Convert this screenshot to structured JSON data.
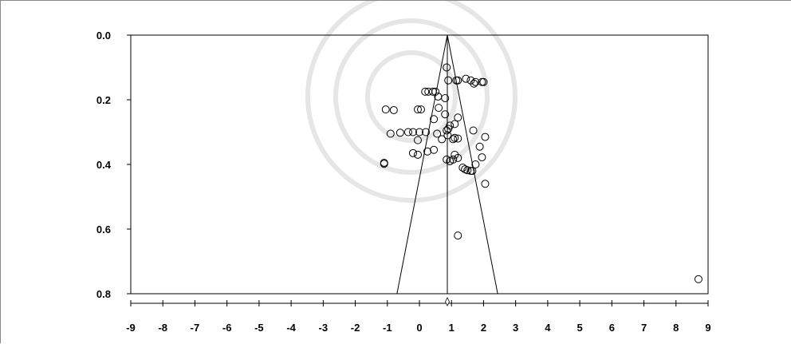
{
  "chart_data": {
    "type": "scatter",
    "subtype": "funnel-plot",
    "title": "",
    "xlabel": "",
    "ylabel": "",
    "xlim": [
      -9,
      9
    ],
    "ylim": [
      0.0,
      0.8
    ],
    "y_inverted": true,
    "x_ticks": [
      -9,
      -8,
      -7,
      -6,
      -5,
      -4,
      -3,
      -2,
      -1,
      0,
      1,
      2,
      3,
      4,
      5,
      6,
      7,
      8,
      9
    ],
    "x_tick_labels": [
      "-9",
      "-8",
      "-7",
      "-6",
      "-5",
      "-4",
      "-3",
      "-2",
      "-1",
      "0",
      "1",
      "2",
      "3",
      "4",
      "5",
      "6",
      "7",
      "8",
      "9"
    ],
    "y_ticks": [
      0.0,
      0.2,
      0.4,
      0.6,
      0.8
    ],
    "y_tick_labels": [
      "0.0",
      "0.2",
      "0.4",
      "0.6",
      "0.8"
    ],
    "grid": false,
    "pooled_estimate": 0.87,
    "funnel": {
      "apex": [
        0.87,
        0.0
      ],
      "base_left": [
        -0.7,
        0.8
      ],
      "base_right": [
        2.44,
        0.8
      ]
    },
    "series": [
      {
        "marker": "circle-open",
        "points": [
          [
            0.85,
            0.1
          ],
          [
            0.9,
            0.14
          ],
          [
            1.15,
            0.14
          ],
          [
            1.2,
            0.14
          ],
          [
            1.45,
            0.135
          ],
          [
            1.6,
            0.14
          ],
          [
            1.7,
            0.15
          ],
          [
            1.75,
            0.145
          ],
          [
            1.95,
            0.145
          ],
          [
            2.0,
            0.145
          ],
          [
            0.18,
            0.175
          ],
          [
            0.28,
            0.175
          ],
          [
            0.42,
            0.175
          ],
          [
            0.5,
            0.175
          ],
          [
            0.58,
            0.19
          ],
          [
            0.8,
            0.195
          ],
          [
            0.6,
            0.225
          ],
          [
            -1.05,
            0.23
          ],
          [
            -0.8,
            0.232
          ],
          [
            -0.05,
            0.23
          ],
          [
            0.05,
            0.23
          ],
          [
            0.8,
            0.245
          ],
          [
            0.45,
            0.26
          ],
          [
            1.2,
            0.255
          ],
          [
            0.95,
            0.28
          ],
          [
            1.1,
            0.275
          ],
          [
            0.9,
            0.29
          ],
          [
            0.85,
            0.295
          ],
          [
            1.1,
            0.318
          ],
          [
            1.2,
            0.32
          ],
          [
            1.05,
            0.322
          ],
          [
            -0.9,
            0.305
          ],
          [
            -0.6,
            0.302
          ],
          [
            -0.35,
            0.3
          ],
          [
            -0.2,
            0.3
          ],
          [
            0.0,
            0.3
          ],
          [
            0.2,
            0.3
          ],
          [
            0.55,
            0.305
          ],
          [
            0.7,
            0.322
          ],
          [
            0.88,
            0.31
          ],
          [
            -0.05,
            0.325
          ],
          [
            1.68,
            0.295
          ],
          [
            2.05,
            0.315
          ],
          [
            1.88,
            0.345
          ],
          [
            1.95,
            0.378
          ],
          [
            0.25,
            0.36
          ],
          [
            0.45,
            0.355
          ],
          [
            -0.2,
            0.365
          ],
          [
            -0.05,
            0.37
          ],
          [
            1.1,
            0.37
          ],
          [
            -1.1,
            0.395
          ],
          [
            -1.1,
            0.398
          ],
          [
            0.85,
            0.385
          ],
          [
            0.95,
            0.39
          ],
          [
            1.05,
            0.385
          ],
          [
            1.2,
            0.38
          ],
          [
            1.35,
            0.41
          ],
          [
            1.42,
            0.415
          ],
          [
            1.5,
            0.418
          ],
          [
            1.6,
            0.42
          ],
          [
            1.65,
            0.42
          ],
          [
            1.75,
            0.4
          ],
          [
            2.05,
            0.46
          ],
          [
            1.2,
            0.62
          ],
          [
            8.7,
            0.755
          ]
        ]
      }
    ]
  }
}
